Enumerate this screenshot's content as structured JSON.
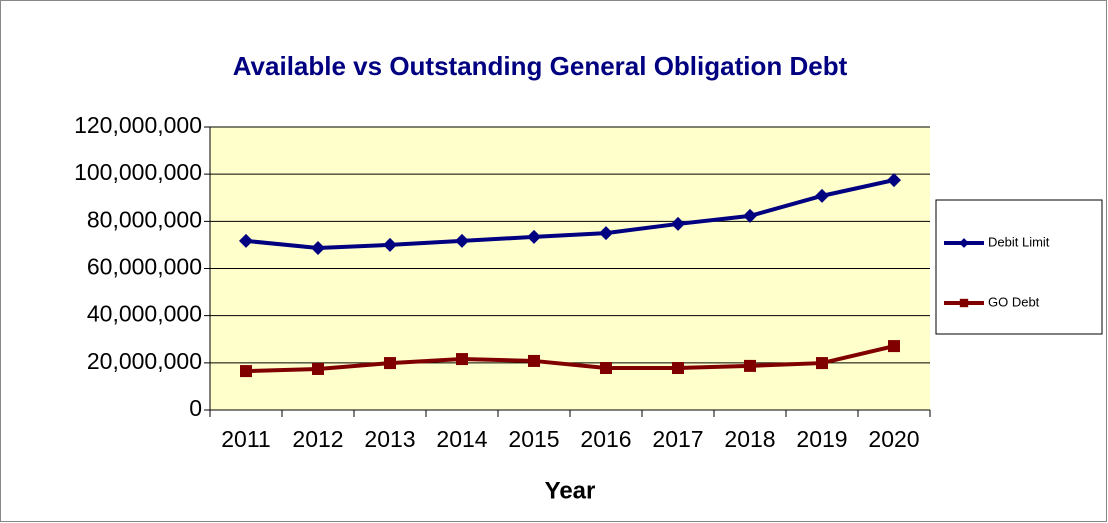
{
  "chart_data": {
    "type": "line",
    "title": "Available vs Outstanding General Obligation Debt",
    "x_label": "Year",
    "categories": [
      "2011",
      "2012",
      "2013",
      "2014",
      "2015",
      "2016",
      "2017",
      "2018",
      "2019",
      "2020"
    ],
    "series": [
      {
        "name": "Debit Limit",
        "color": "#000080",
        "marker": "diamond",
        "values": [
          71700000,
          68700000,
          70000000,
          71700000,
          73400000,
          75000000,
          78900000,
          82300000,
          90800000,
          97500000
        ]
      },
      {
        "name": "GO Debt",
        "color": "#800000",
        "marker": "square",
        "values": [
          16500000,
          17400000,
          19900000,
          21600000,
          20800000,
          17800000,
          17800000,
          18700000,
          19900000,
          27100000
        ]
      }
    ],
    "ylim": [
      0,
      120000000
    ],
    "yticks": [
      0,
      {
        "value": 20000000,
        "label": "20,000,000"
      },
      {
        "value": 40000000,
        "label": "40,000,000"
      },
      {
        "value": 60000000,
        "label": "60,000,000"
      },
      {
        "value": 80000000,
        "label": "80,000,000"
      },
      {
        "value": 100000000,
        "label": "100,000,000"
      },
      {
        "value": 120000000,
        "label": "120,000,000"
      }
    ],
    "grid": true,
    "legend": "right",
    "plot_background": "#ffffcc"
  }
}
